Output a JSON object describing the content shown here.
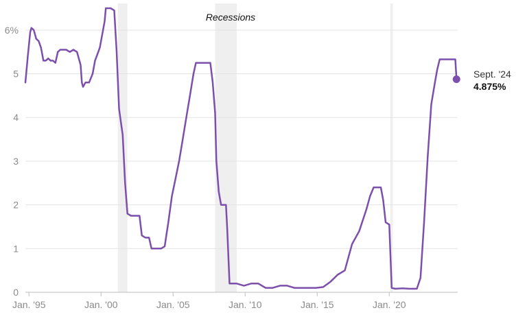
{
  "chart_data": {
    "type": "line",
    "title": "",
    "xlabel": "",
    "ylabel": "",
    "ylim": [
      0,
      6.5
    ],
    "y_ticks": [
      {
        "value": 0,
        "label": "0"
      },
      {
        "value": 1,
        "label": "1"
      },
      {
        "value": 2,
        "label": "2"
      },
      {
        "value": 3,
        "label": "3"
      },
      {
        "value": 4,
        "label": "4"
      },
      {
        "value": 5,
        "label": "5"
      },
      {
        "value": 6,
        "label": "6%"
      }
    ],
    "x_ticks": [
      {
        "value": "1995-01",
        "label": "Jan. '95"
      },
      {
        "value": "2000-01",
        "label": "Jan. '00"
      },
      {
        "value": "2005-01",
        "label": "Jan. '05"
      },
      {
        "value": "2010-01",
        "label": "Jan. '10"
      },
      {
        "value": "2015-01",
        "label": "Jan. '15"
      },
      {
        "value": "2020-01",
        "label": "Jan. '20"
      }
    ],
    "grid": true,
    "line_color": "#7b4fab",
    "recession_color": "#efefef",
    "recession_label": "Recessions",
    "recessions": [
      {
        "start": "2001-03",
        "end": "2001-11"
      },
      {
        "start": "2007-12",
        "end": "2009-06"
      },
      {
        "start": "2020-02",
        "end": "2020-04"
      }
    ],
    "annotation": {
      "label": "Sept. '24",
      "value_label": "4.875%",
      "x": "2024-09",
      "y": 4.875
    },
    "series": [
      {
        "points": [
          [
            "1994-10",
            4.8
          ],
          [
            "1994-12",
            5.4
          ],
          [
            "1995-02",
            5.95
          ],
          [
            "1995-03",
            6.05
          ],
          [
            "1995-05",
            6.0
          ],
          [
            "1995-07",
            5.8
          ],
          [
            "1995-09",
            5.75
          ],
          [
            "1995-11",
            5.6
          ],
          [
            "1996-01",
            5.3
          ],
          [
            "1996-03",
            5.3
          ],
          [
            "1996-05",
            5.35
          ],
          [
            "1996-07",
            5.3
          ],
          [
            "1996-09",
            5.3
          ],
          [
            "1996-11",
            5.25
          ],
          [
            "1997-01",
            5.5
          ],
          [
            "1997-03",
            5.55
          ],
          [
            "1997-05",
            5.55
          ],
          [
            "1997-08",
            5.55
          ],
          [
            "1997-11",
            5.5
          ],
          [
            "1998-02",
            5.55
          ],
          [
            "1998-05",
            5.5
          ],
          [
            "1998-08",
            5.2
          ],
          [
            "1998-09",
            4.8
          ],
          [
            "1998-10",
            4.7
          ],
          [
            "1998-12",
            4.8
          ],
          [
            "1999-03",
            4.8
          ],
          [
            "1999-06",
            5.0
          ],
          [
            "1999-08",
            5.3
          ],
          [
            "1999-10",
            5.45
          ],
          [
            "1999-12",
            5.6
          ],
          [
            "2000-02",
            5.9
          ],
          [
            "2000-04",
            6.2
          ],
          [
            "2000-05",
            6.5
          ],
          [
            "2000-07",
            6.5
          ],
          [
            "2000-09",
            6.5
          ],
          [
            "2000-12",
            6.45
          ],
          [
            "2001-02",
            5.5
          ],
          [
            "2001-04",
            4.2
          ],
          [
            "2001-07",
            3.6
          ],
          [
            "2001-09",
            2.5
          ],
          [
            "2001-11",
            1.8
          ],
          [
            "2002-02",
            1.75
          ],
          [
            "2002-06",
            1.75
          ],
          [
            "2002-09",
            1.75
          ],
          [
            "2002-11",
            1.3
          ],
          [
            "2003-02",
            1.25
          ],
          [
            "2003-05",
            1.25
          ],
          [
            "2003-07",
            1.0
          ],
          [
            "2003-12",
            1.0
          ],
          [
            "2004-03",
            1.0
          ],
          [
            "2004-06",
            1.05
          ],
          [
            "2004-09",
            1.6
          ],
          [
            "2004-12",
            2.2
          ],
          [
            "2005-03",
            2.6
          ],
          [
            "2005-06",
            3.0
          ],
          [
            "2005-09",
            3.5
          ],
          [
            "2005-12",
            4.0
          ],
          [
            "2006-03",
            4.5
          ],
          [
            "2006-06",
            5.0
          ],
          [
            "2006-08",
            5.25
          ],
          [
            "2007-02",
            5.25
          ],
          [
            "2007-08",
            5.25
          ],
          [
            "2007-10",
            4.8
          ],
          [
            "2007-12",
            4.1
          ],
          [
            "2008-01",
            3.0
          ],
          [
            "2008-03",
            2.3
          ],
          [
            "2008-05",
            2.0
          ],
          [
            "2008-09",
            2.0
          ],
          [
            "2008-10",
            1.5
          ],
          [
            "2008-12",
            0.2
          ],
          [
            "2009-03",
            0.2
          ],
          [
            "2009-06",
            0.2
          ],
          [
            "2009-12",
            0.15
          ],
          [
            "2010-06",
            0.2
          ],
          [
            "2010-12",
            0.2
          ],
          [
            "2011-06",
            0.1
          ],
          [
            "2011-12",
            0.1
          ],
          [
            "2012-06",
            0.15
          ],
          [
            "2012-12",
            0.15
          ],
          [
            "2013-06",
            0.1
          ],
          [
            "2013-12",
            0.1
          ],
          [
            "2014-06",
            0.1
          ],
          [
            "2014-12",
            0.1
          ],
          [
            "2015-06",
            0.12
          ],
          [
            "2015-12",
            0.24
          ],
          [
            "2016-06",
            0.4
          ],
          [
            "2016-12",
            0.5
          ],
          [
            "2017-06",
            1.1
          ],
          [
            "2017-12",
            1.4
          ],
          [
            "2018-06",
            1.9
          ],
          [
            "2018-09",
            2.2
          ],
          [
            "2018-12",
            2.4
          ],
          [
            "2019-06",
            2.4
          ],
          [
            "2019-08",
            2.1
          ],
          [
            "2019-10",
            1.6
          ],
          [
            "2020-01",
            1.55
          ],
          [
            "2020-03",
            0.1
          ],
          [
            "2020-06",
            0.08
          ],
          [
            "2020-12",
            0.09
          ],
          [
            "2021-06",
            0.08
          ],
          [
            "2021-12",
            0.08
          ],
          [
            "2022-03",
            0.33
          ],
          [
            "2022-06",
            1.6
          ],
          [
            "2022-09",
            3.1
          ],
          [
            "2022-12",
            4.3
          ],
          [
            "2023-03",
            4.8
          ],
          [
            "2023-05",
            5.1
          ],
          [
            "2023-07",
            5.33
          ],
          [
            "2023-12",
            5.33
          ],
          [
            "2024-06",
            5.33
          ],
          [
            "2024-08",
            5.33
          ],
          [
            "2024-09",
            4.875
          ]
        ]
      }
    ]
  }
}
